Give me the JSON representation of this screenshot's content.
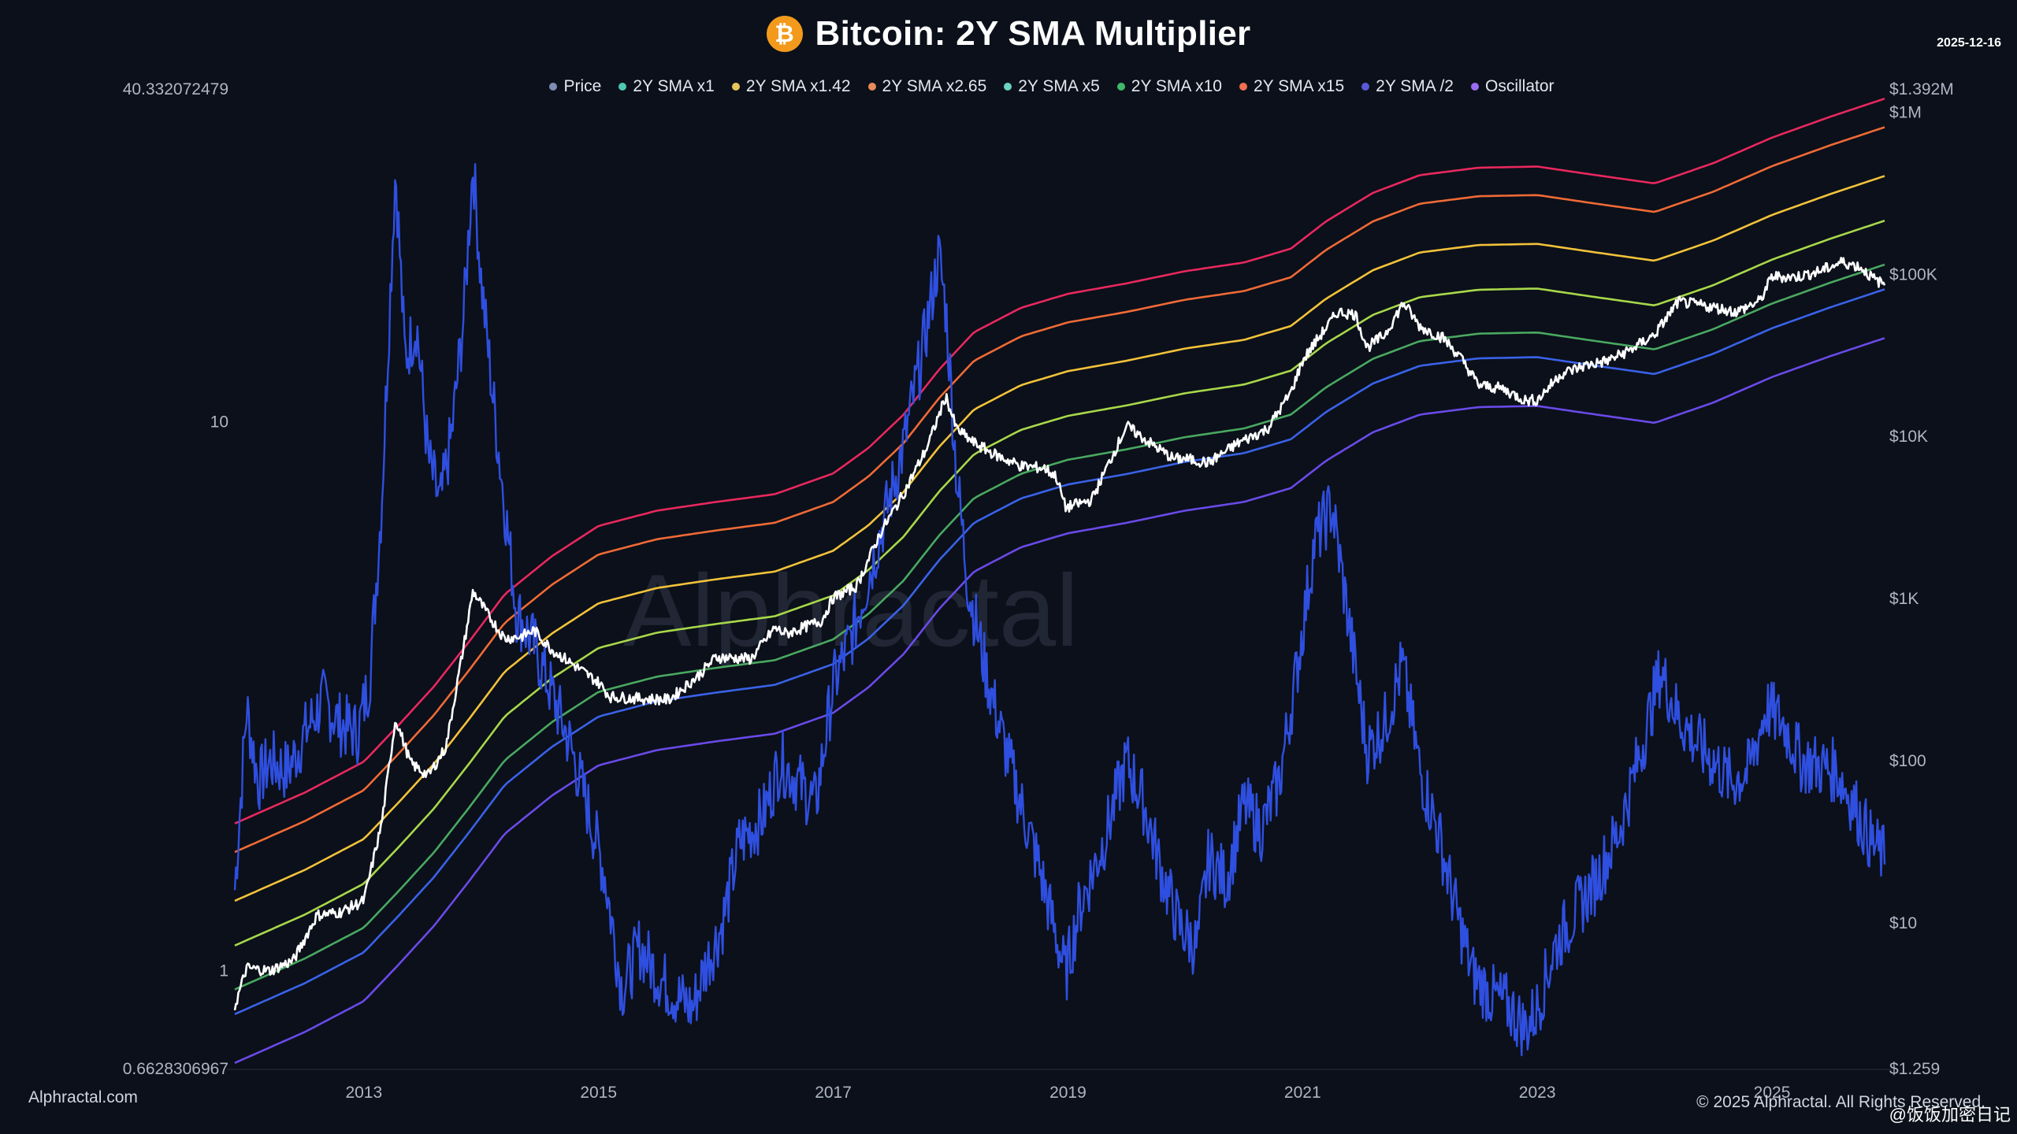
{
  "header": {
    "title": "Bitcoin: 2Y SMA Multiplier",
    "date": "2025-12-16",
    "icon": "bitcoin-icon"
  },
  "legend": [
    {
      "name": "Price",
      "color": "#7f8db5"
    },
    {
      "name": "2Y SMA x1",
      "color": "#4fc7b3"
    },
    {
      "name": "2Y SMA x1.42",
      "color": "#e8c45a"
    },
    {
      "name": "2Y SMA x2.65",
      "color": "#e98a5a"
    },
    {
      "name": "2Y SMA x5",
      "color": "#6bd3c4"
    },
    {
      "name": "2Y SMA x10",
      "color": "#40b86a"
    },
    {
      "name": "2Y SMA x15",
      "color": "#f07050"
    },
    {
      "name": "2Y SMA /2",
      "color": "#5a5ad8"
    },
    {
      "name": "Oscillator",
      "color": "#9a6cf0"
    }
  ],
  "watermark": "Alphractal",
  "footer": {
    "site": "Alphractal.com",
    "copyright": "© 2025 Alphractal. All Rights Reserved.",
    "user": "@饭饭加密日记"
  },
  "colors": {
    "background": "#0b101a",
    "price": "#ffffff",
    "oscillator": "#2f4fe0",
    "band_top": "#e8285e",
    "band_2": "#f06a36",
    "band_3": "#f2c23a",
    "band_4": "#a8d84a",
    "band_5": "#4aa860",
    "band_6": "#3a62e8",
    "band_bottom": "#6a4ae8"
  },
  "chart_data": {
    "type": "line",
    "title": "Bitcoin: 2Y SMA Multiplier",
    "x_start": 2011.9,
    "x_end": 2025.96,
    "x_ticks": [
      2013,
      2015,
      2017,
      2019,
      2021,
      2023,
      2025
    ],
    "x_tick_labels": [
      "2013",
      "2015",
      "2017",
      "2019",
      "2021",
      "2023",
      "2025"
    ],
    "left_axis": {
      "label_top": "40.332072479",
      "label_bottom": "0.6628306967",
      "min": 0.6628306967,
      "max": 40.332072479,
      "scale": "log",
      "tick_values": [
        1,
        10
      ],
      "tick_labels": [
        "1",
        "10"
      ]
    },
    "right_axis": {
      "min": 1.259,
      "max": 1392000,
      "scale": "log",
      "tick_values": [
        1392000,
        1000000,
        100000,
        10000,
        1000,
        100,
        10,
        1.259
      ],
      "tick_labels": [
        "$1.392M",
        "$1M",
        "$100K",
        "$10K",
        "$1K",
        "$100",
        "$10",
        "$1.259"
      ]
    },
    "bands": {
      "x": [
        2011.9,
        2012.5,
        2013.0,
        2013.3,
        2013.6,
        2013.9,
        2014.2,
        2014.6,
        2015.0,
        2015.5,
        2016.0,
        2016.5,
        2017.0,
        2017.3,
        2017.6,
        2017.9,
        2018.2,
        2018.6,
        2019.0,
        2019.5,
        2020.0,
        2020.5,
        2020.9,
        2021.2,
        2021.6,
        2022.0,
        2022.5,
        2023.0,
        2023.5,
        2024.0,
        2024.5,
        2025.0,
        2025.5,
        2025.96
      ],
      "sma_x1": [
        2.7,
        4.2,
        6.5,
        11,
        19,
        36,
        70,
        120,
        185,
        230,
        260,
        290,
        390,
        560,
        900,
        1700,
        2900,
        4100,
        5000,
        5800,
        6900,
        7800,
        9500,
        14000,
        21000,
        27000,
        30000,
        30500,
        27000,
        24000,
        32000,
        46000,
        62000,
        80000
      ],
      "multipliers": {
        "x15": 15,
        "x10": 10,
        "x5": 5,
        "x2.65": 2.65,
        "x1.42": 1.42,
        "x1": 1,
        "/2": 0.5
      }
    },
    "price": {
      "x": [
        2011.9,
        2012.0,
        2012.2,
        2012.4,
        2012.6,
        2012.8,
        2013.0,
        2013.15,
        2013.27,
        2013.4,
        2013.55,
        2013.7,
        2013.85,
        2013.93,
        2014.05,
        2014.2,
        2014.35,
        2014.45,
        2014.6,
        2014.8,
        2015.0,
        2015.1,
        2015.3,
        2015.6,
        2015.85,
        2016.0,
        2016.3,
        2016.5,
        2016.6,
        2016.9,
        2017.0,
        2017.2,
        2017.4,
        2017.6,
        2017.8,
        2017.96,
        2018.05,
        2018.2,
        2018.4,
        2018.6,
        2018.8,
        2018.9,
        2018.98,
        2019.2,
        2019.5,
        2019.7,
        2019.9,
        2020.0,
        2020.2,
        2020.45,
        2020.7,
        2020.9,
        2021.0,
        2021.1,
        2021.3,
        2021.45,
        2021.55,
        2021.7,
        2021.86,
        2022.0,
        2022.2,
        2022.35,
        2022.5,
        2022.7,
        2022.9,
        2023.0,
        2023.2,
        2023.4,
        2023.6,
        2023.8,
        2024.0,
        2024.2,
        2024.5,
        2024.7,
        2024.9,
        2025.0,
        2025.2,
        2025.4,
        2025.6,
        2025.75,
        2025.88,
        2025.96
      ],
      "y": [
        3.0,
        5.2,
        5.0,
        5.8,
        11,
        11.5,
        13.5,
        40,
        180,
        95,
        80,
        120,
        500,
        1100,
        800,
        560,
        580,
        630,
        480,
        380,
        300,
        245,
        240,
        235,
        330,
        430,
        420,
        650,
        600,
        720,
        1000,
        1180,
        2500,
        4400,
        8500,
        17500,
        11000,
        9000,
        7500,
        6500,
        6300,
        5600,
        3600,
        4000,
        11500,
        9000,
        7200,
        7200,
        6800,
        9000,
        11000,
        18500,
        29000,
        37000,
        58000,
        56000,
        35000,
        42000,
        66000,
        47000,
        40000,
        30000,
        20500,
        19500,
        16500,
        16600,
        24000,
        27000,
        29000,
        34000,
        42000,
        67000,
        62000,
        58000,
        68000,
        96000,
        95000,
        103000,
        118000,
        110000,
        91000,
        86000
      ]
    },
    "oscillator": {
      "x": [
        2011.9,
        2012.0,
        2012.1,
        2012.2,
        2012.35,
        2012.5,
        2012.65,
        2012.8,
        2012.95,
        2013.05,
        2013.15,
        2013.27,
        2013.35,
        2013.45,
        2013.55,
        2013.65,
        2013.75,
        2013.85,
        2013.93,
        2014.0,
        2014.1,
        2014.2,
        2014.3,
        2014.45,
        2014.6,
        2014.75,
        2014.9,
        2015.05,
        2015.2,
        2015.35,
        2015.5,
        2015.65,
        2015.8,
        2015.9,
        2016.05,
        2016.2,
        2016.4,
        2016.55,
        2016.7,
        2016.85,
        2017.0,
        2017.15,
        2017.3,
        2017.45,
        2017.6,
        2017.75,
        2017.9,
        2017.96,
        2018.05,
        2018.15,
        2018.3,
        2018.45,
        2018.6,
        2018.75,
        2018.9,
        2018.98,
        2019.1,
        2019.3,
        2019.5,
        2019.65,
        2019.8,
        2019.95,
        2020.1,
        2020.2,
        2020.35,
        2020.5,
        2020.65,
        2020.8,
        2020.95,
        2021.1,
        2021.25,
        2021.4,
        2021.55,
        2021.7,
        2021.85,
        2022.0,
        2022.15,
        2022.3,
        2022.45,
        2022.6,
        2022.75,
        2022.9,
        2023.0,
        2023.15,
        2023.3,
        2023.5,
        2023.7,
        2023.9,
        2024.05,
        2024.2,
        2024.35,
        2024.5,
        2024.65,
        2024.8,
        2024.95,
        2025.1,
        2025.25,
        2025.4,
        2025.55,
        2025.7,
        2025.85,
        2025.96
      ],
      "y": [
        1.4,
        3.0,
        2.2,
        2.4,
        2.3,
        2.7,
        3.1,
        2.8,
        2.7,
        3.4,
        7.0,
        29.0,
        13.0,
        15.0,
        8.5,
        7.0,
        9.5,
        15.5,
        29.5,
        18.0,
        11.0,
        7.0,
        4.5,
        3.9,
        3.2,
        2.6,
        2.0,
        1.5,
        0.92,
        1.1,
        0.98,
        0.9,
        0.85,
        1.0,
        1.2,
        1.7,
        1.9,
        2.4,
        2.2,
        2.0,
        3.3,
        4.0,
        5.2,
        6.8,
        9.0,
        13.0,
        20.0,
        16.0,
        8.0,
        5.0,
        3.5,
        2.6,
        2.0,
        1.55,
        1.15,
        0.98,
        1.3,
        1.7,
        2.4,
        2.0,
        1.5,
        1.2,
        1.1,
        1.6,
        1.45,
        2.0,
        1.8,
        2.2,
        3.5,
        6.0,
        7.0,
        4.2,
        2.5,
        2.8,
        3.6,
        2.3,
        1.8,
        1.3,
        0.98,
        0.9,
        0.86,
        0.78,
        0.85,
        1.1,
        1.25,
        1.45,
        1.8,
        2.6,
        3.5,
        2.9,
        2.6,
        2.4,
        2.2,
        2.3,
        3.0,
        2.8,
        2.4,
        2.35,
        2.3,
        2.0,
        1.7,
        1.6
      ]
    }
  }
}
